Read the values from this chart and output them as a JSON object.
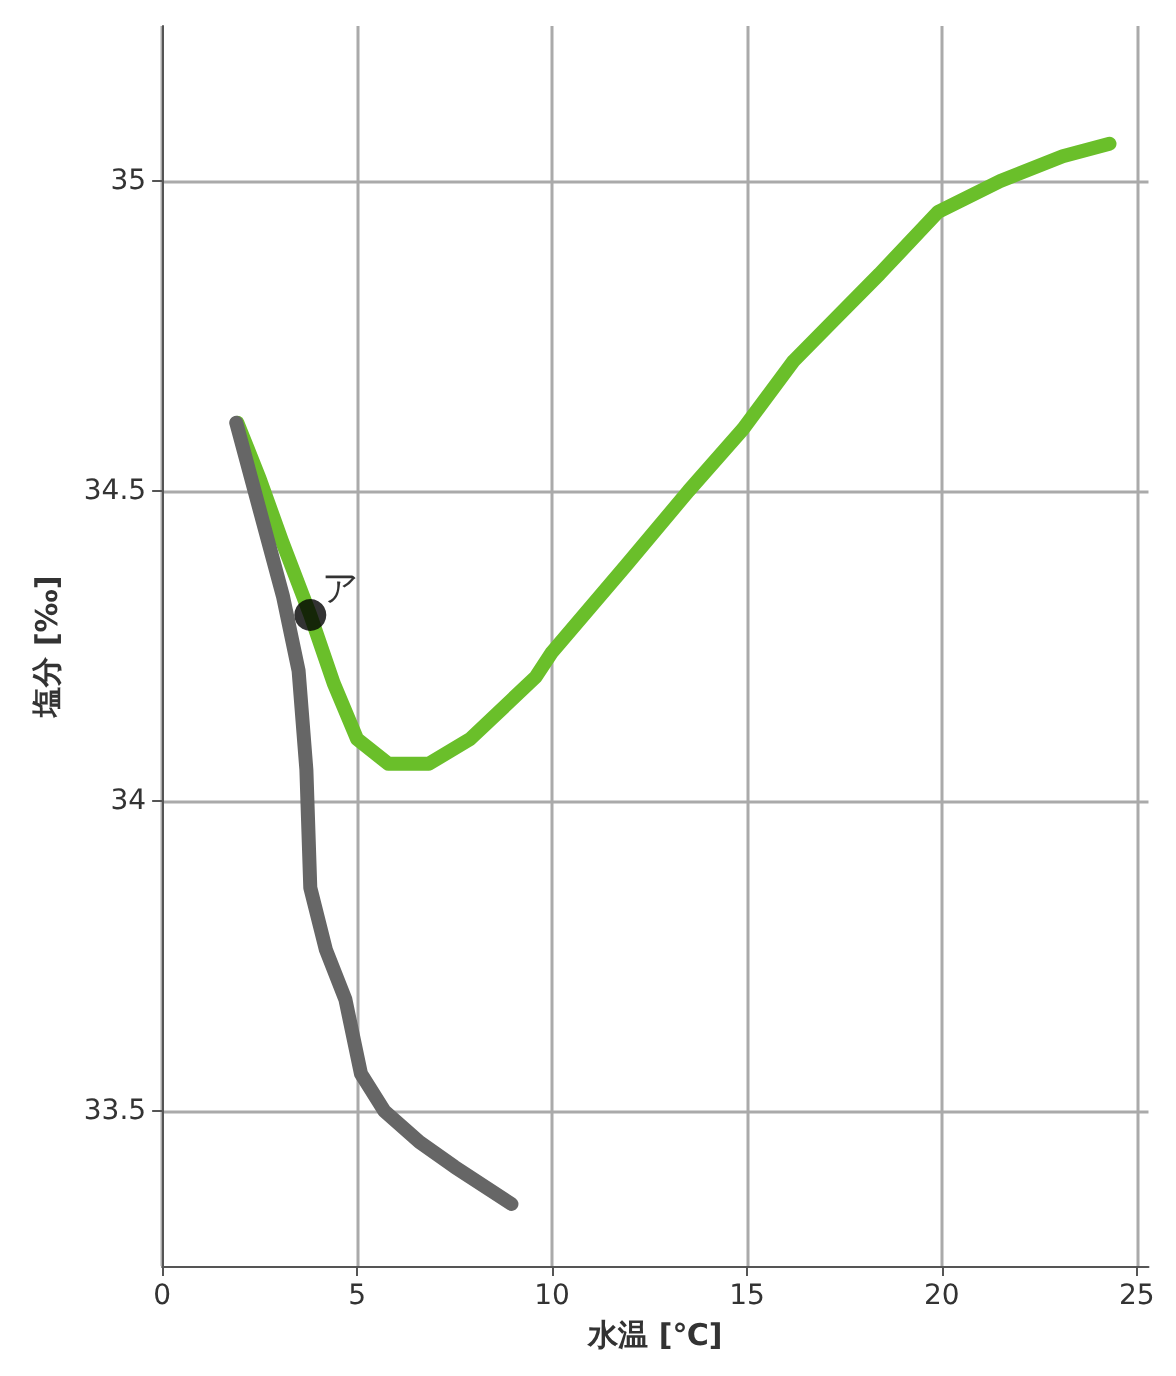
{
  "chart_data": {
    "type": "line",
    "xlabel": "水温 [℃]",
    "ylabel": "塩分 [‰]",
    "xlim": [
      0,
      25.3
    ],
    "xticks": [
      0,
      5,
      10,
      15,
      20,
      25
    ],
    "ylim": [
      33.25,
      35.25
    ],
    "yticks": [
      33.5,
      34,
      34.5,
      35
    ],
    "grid": true,
    "marker": "none",
    "line_style": "solid",
    "series": [
      {
        "color": "#6abf2a",
        "x": [
          1.93,
          2.5,
          3.07,
          3.8,
          4.4,
          5.0,
          5.8,
          6.84,
          7.9,
          9.58,
          10.0,
          11.9,
          13.5,
          14.9,
          16.2,
          17.3,
          18.4,
          19.9,
          21.5,
          23.1,
          24.3
        ],
        "values": [
          34.61,
          34.52,
          34.42,
          34.3,
          34.19,
          34.1,
          34.06,
          34.06,
          34.1,
          34.2,
          34.24,
          34.38,
          34.5,
          34.6,
          34.71,
          34.78,
          34.85,
          34.95,
          35.0,
          35.04,
          35.06
        ]
      },
      {
        "color": "#666666",
        "x": [
          1.9,
          2.5,
          3.1,
          3.5,
          3.7,
          3.8,
          4.2,
          4.7,
          5.1,
          5.7,
          6.6,
          7.5,
          8.96
        ],
        "values": [
          34.61,
          34.47,
          34.33,
          34.21,
          34.05,
          33.86,
          33.76,
          33.68,
          33.56,
          33.5,
          33.45,
          33.41,
          33.35
        ]
      },
      {
        "type": "scatter",
        "marker": "circle",
        "color": "#000000",
        "x": [
          3.8
        ],
        "values": [
          34.3
        ]
      }
    ],
    "annotations": [
      {
        "text": "ア",
        "x": 3.8,
        "y": 34.3
      }
    ]
  }
}
